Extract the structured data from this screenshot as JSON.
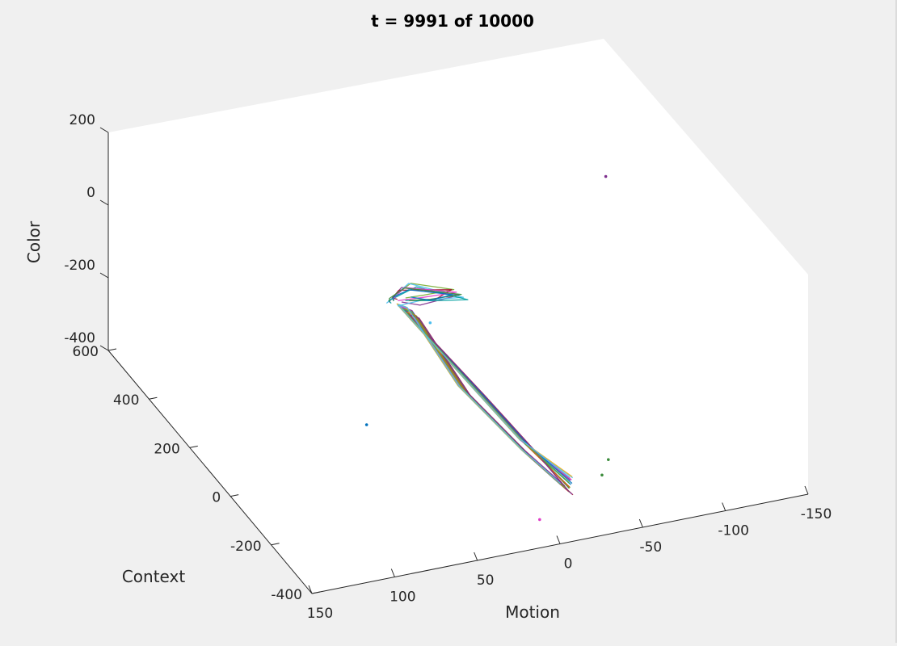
{
  "figure": {
    "background": "#f0f0f0"
  },
  "chart_data": {
    "type": "line3d",
    "title": "t = 9991 of 10000",
    "xlabel": "Motion",
    "ylabel": "Context",
    "zlabel": "Color",
    "xlim": [
      -150,
      150
    ],
    "ylim": [
      -400,
      600
    ],
    "zlim": [
      -400,
      200
    ],
    "xticks": [
      "150",
      "100",
      "50",
      "0",
      "-50",
      "-100",
      "-150"
    ],
    "yticks": [
      "-400",
      "-200",
      "0",
      "200",
      "400",
      "600"
    ],
    "zticks": [
      "-400",
      "-200",
      "0",
      "200"
    ],
    "grid": false,
    "legend": "none",
    "axes_color": "#ffffff",
    "series_colors": [
      "#0072bd",
      "#d95319",
      "#edb120",
      "#7e2f8e",
      "#77ac30",
      "#4dbeee",
      "#a2142f",
      "#00a0a0",
      "#e03cc8",
      "#3c8c3c"
    ],
    "line_trajectories": [
      {
        "points": [
          [
            -15,
            500,
            -350
          ],
          [
            -20,
            450,
            -330
          ],
          [
            -40,
            420,
            -300
          ],
          [
            -15,
            500,
            -310
          ],
          [
            -8,
            500,
            -340
          ],
          [
            -10,
            520,
            -360
          ]
        ]
      },
      {
        "points": [
          [
            -18,
            505,
            -345
          ],
          [
            -25,
            470,
            -320
          ],
          [
            -38,
            430,
            -290
          ],
          [
            -20,
            495,
            -300
          ],
          [
            -10,
            505,
            -335
          ],
          [
            -12,
            515,
            -355
          ]
        ]
      },
      {
        "points": [
          [
            -12,
            495,
            -355
          ],
          [
            -22,
            460,
            -325
          ],
          [
            -42,
            415,
            -305
          ],
          [
            -18,
            490,
            -295
          ],
          [
            -6,
            500,
            -345
          ],
          [
            -9,
            525,
            -365
          ]
        ]
      },
      {
        "points": [
          [
            -20,
            500,
            -350
          ],
          [
            -28,
            440,
            -315
          ],
          [
            -36,
            425,
            -285
          ],
          [
            -14,
            505,
            -320
          ],
          [
            -9,
            495,
            -330
          ],
          [
            -14,
            512,
            -350
          ]
        ]
      },
      {
        "points": [
          [
            -16,
            490,
            -340
          ],
          [
            -30,
            455,
            -330
          ],
          [
            -44,
            410,
            -310
          ],
          [
            -22,
            485,
            -305
          ],
          [
            -7,
            498,
            -338
          ],
          [
            -11,
            518,
            -362
          ]
        ]
      },
      {
        "points": [
          [
            -14,
            510,
            -352
          ],
          [
            -24,
            465,
            -322
          ],
          [
            -39,
            425,
            -295
          ],
          [
            -17,
            500,
            -312
          ],
          [
            -11,
            508,
            -342
          ],
          [
            -13,
            522,
            -358
          ]
        ]
      },
      {
        "points": [
          [
            -19,
            497,
            -348
          ],
          [
            -26,
            448,
            -318
          ],
          [
            -41,
            418,
            -298
          ],
          [
            -16,
            493,
            -308
          ],
          [
            -8,
            503,
            -336
          ],
          [
            -10,
            519,
            -357
          ]
        ]
      },
      {
        "points": [
          [
            -21,
            503,
            -344
          ],
          [
            -27,
            458,
            -328
          ],
          [
            -37,
            428,
            -302
          ],
          [
            -19,
            497,
            -318
          ],
          [
            -10,
            500,
            -332
          ],
          [
            -12,
            514,
            -353
          ]
        ]
      }
    ],
    "rung_trajectories": [
      {
        "points": [
          [
            -25,
            -250,
            -360
          ],
          [
            -20,
            -80,
            -360
          ],
          [
            -18,
            150,
            -360
          ],
          [
            -15,
            420,
            -362
          ],
          [
            -14,
            480,
            -358
          ],
          [
            -17,
            460,
            -356
          ],
          [
            -10,
            150,
            -357
          ],
          [
            -15,
            -120,
            -357
          ],
          [
            -20,
            -270,
            -356
          ]
        ]
      },
      {
        "points": [
          [
            -27,
            -230,
            -358
          ],
          [
            -18,
            -60,
            -358
          ],
          [
            -16,
            170,
            -358
          ],
          [
            -14,
            430,
            -360
          ],
          [
            -13,
            490,
            -356
          ],
          [
            -16,
            470,
            -354
          ],
          [
            -9,
            170,
            -355
          ],
          [
            -14,
            -100,
            -355
          ],
          [
            -19,
            -250,
            -354
          ]
        ]
      },
      {
        "points": [
          [
            -23,
            -260,
            -362
          ],
          [
            -21,
            -90,
            -362
          ],
          [
            -19,
            140,
            -362
          ],
          [
            -16,
            410,
            -364
          ],
          [
            -15,
            470,
            -360
          ],
          [
            -18,
            450,
            -358
          ],
          [
            -11,
            140,
            -359
          ],
          [
            -16,
            -130,
            -359
          ],
          [
            -21,
            -280,
            -358
          ]
        ]
      },
      {
        "points": [
          [
            -26,
            -240,
            -356
          ],
          [
            -19,
            -70,
            -356
          ],
          [
            -17,
            160,
            -356
          ],
          [
            -15,
            425,
            -358
          ],
          [
            -14,
            485,
            -354
          ],
          [
            -17,
            465,
            -352
          ],
          [
            -10,
            160,
            -353
          ],
          [
            -15,
            -110,
            -353
          ],
          [
            -20,
            -260,
            -352
          ]
        ]
      },
      {
        "points": [
          [
            -24,
            -255,
            -364
          ],
          [
            -20,
            -85,
            -364
          ],
          [
            -18,
            145,
            -364
          ],
          [
            -16,
            415,
            -366
          ],
          [
            -15,
            475,
            -362
          ],
          [
            -18,
            455,
            -360
          ],
          [
            -11,
            145,
            -361
          ],
          [
            -16,
            -125,
            -361
          ],
          [
            -21,
            -275,
            -360
          ]
        ]
      },
      {
        "points": [
          [
            -28,
            -235,
            -354
          ],
          [
            -17,
            -65,
            -354
          ],
          [
            -15,
            165,
            -354
          ],
          [
            -13,
            435,
            -356
          ],
          [
            -12,
            495,
            -352
          ],
          [
            -15,
            475,
            -350
          ],
          [
            -8,
            165,
            -351
          ],
          [
            -13,
            -105,
            -351
          ],
          [
            -18,
            -255,
            -350
          ]
        ]
      },
      {
        "points": [
          [
            -22,
            -265,
            -366
          ],
          [
            -22,
            -95,
            -366
          ],
          [
            -20,
            135,
            -366
          ],
          [
            -17,
            405,
            -368
          ],
          [
            -16,
            465,
            -364
          ],
          [
            -19,
            445,
            -362
          ],
          [
            -12,
            135,
            -363
          ],
          [
            -17,
            -135,
            -363
          ],
          [
            -22,
            -285,
            -362
          ]
        ]
      },
      {
        "points": [
          [
            -25,
            -245,
            -361
          ],
          [
            -19,
            -75,
            -361
          ],
          [
            -17,
            155,
            -361
          ],
          [
            -15,
            428,
            -363
          ],
          [
            -14,
            488,
            -359
          ],
          [
            -17,
            468,
            -357
          ],
          [
            -10,
            155,
            -358
          ],
          [
            -15,
            -115,
            -358
          ],
          [
            -20,
            -265,
            -357
          ]
        ]
      },
      {
        "points": [
          [
            -27,
            -238,
            -357
          ],
          [
            -18,
            -68,
            -357
          ],
          [
            -16,
            162,
            -357
          ],
          [
            -14,
            432,
            -359
          ],
          [
            -13,
            492,
            -355
          ],
          [
            -16,
            472,
            -353
          ],
          [
            -9,
            162,
            -354
          ],
          [
            -14,
            -108,
            -354
          ],
          [
            -19,
            -258,
            -353
          ]
        ]
      },
      {
        "points": [
          [
            -23,
            -258,
            -363
          ],
          [
            -21,
            -88,
            -363
          ],
          [
            -19,
            142,
            -363
          ],
          [
            -16,
            412,
            -365
          ],
          [
            -15,
            472,
            -361
          ],
          [
            -18,
            452,
            -359
          ],
          [
            -11,
            142,
            -360
          ],
          [
            -16,
            -128,
            -360
          ],
          [
            -21,
            -278,
            -359
          ]
        ]
      },
      {
        "points": [
          [
            -26,
            -248,
            -359
          ],
          [
            -20,
            -78,
            -359
          ],
          [
            -18,
            152,
            -359
          ],
          [
            -15,
            422,
            -361
          ],
          [
            -14,
            482,
            -357
          ],
          [
            -17,
            462,
            -355
          ],
          [
            -10,
            152,
            -356
          ],
          [
            -15,
            -118,
            -356
          ],
          [
            -20,
            -268,
            -355
          ]
        ]
      },
      {
        "points": [
          [
            -24,
            -252,
            -365
          ],
          [
            -20,
            -82,
            -365
          ],
          [
            -18,
            148,
            -365
          ],
          [
            -16,
            418,
            -367
          ],
          [
            -15,
            478,
            -363
          ],
          [
            -18,
            458,
            -361
          ],
          [
            -11,
            148,
            -362
          ],
          [
            -16,
            -122,
            -362
          ],
          [
            -21,
            -272,
            -361
          ]
        ]
      },
      {
        "points": [
          [
            -28,
            -232,
            -353
          ],
          [
            -17,
            -62,
            -353
          ],
          [
            -15,
            168,
            -353
          ],
          [
            -13,
            438,
            -355
          ],
          [
            -12,
            498,
            -351
          ],
          [
            -15,
            478,
            -349
          ],
          [
            -8,
            168,
            -350
          ],
          [
            -13,
            -102,
            -350
          ],
          [
            -18,
            -252,
            -349
          ]
        ]
      },
      {
        "points": [
          [
            -22,
            -262,
            -367
          ],
          [
            -22,
            -92,
            -367
          ],
          [
            -20,
            138,
            -367
          ],
          [
            -17,
            408,
            -369
          ],
          [
            -16,
            468,
            -365
          ],
          [
            -19,
            448,
            -363
          ],
          [
            -12,
            138,
            -364
          ],
          [
            -17,
            -132,
            -364
          ],
          [
            -22,
            -282,
            -363
          ]
        ]
      },
      {
        "points": [
          [
            -25,
            -242,
            -360
          ],
          [
            -19,
            -72,
            -360
          ],
          [
            -17,
            158,
            -360
          ],
          [
            -15,
            426,
            -362
          ],
          [
            -14,
            486,
            -358
          ],
          [
            -17,
            466,
            -356
          ],
          [
            -10,
            158,
            -357
          ],
          [
            -15,
            -112,
            -357
          ],
          [
            -20,
            -262,
            -356
          ]
        ]
      },
      {
        "points": [
          [
            -27,
            -228,
            -357
          ],
          [
            -18,
            -58,
            -357
          ],
          [
            -16,
            172,
            -357
          ],
          [
            -14,
            440,
            -359
          ],
          [
            -13,
            500,
            -355
          ],
          [
            -16,
            480,
            -353
          ],
          [
            -9,
            172,
            -354
          ],
          [
            -14,
            -98,
            -354
          ],
          [
            -19,
            -248,
            -353
          ]
        ]
      }
    ],
    "outlier_points": [
      {
        "x": -20,
        "y": 400,
        "z": -345,
        "color": "#4dbeee"
      },
      {
        "x": 80,
        "y": -100,
        "z": -200,
        "color": "#0072bd"
      },
      {
        "x": -120,
        "y": 350,
        "z": 0,
        "color": "#7e2f8e"
      },
      {
        "x": -50,
        "y": -200,
        "z": -390,
        "color": "#3c8c3c"
      },
      {
        "x": -60,
        "y": -150,
        "z": -390,
        "color": "#3c8c3c"
      },
      {
        "x": 0,
        "y": -300,
        "z": -400,
        "color": "#e03cc8"
      }
    ]
  }
}
